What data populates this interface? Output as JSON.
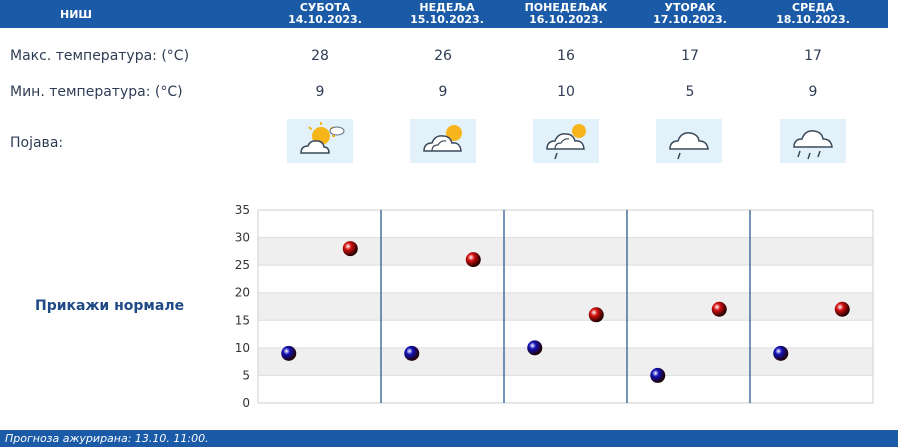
{
  "header": {
    "city": "НИШ",
    "days": [
      {
        "name": "СУБОТА",
        "date": "14.10.2023."
      },
      {
        "name": "НЕДЕЉА",
        "date": "15.10.2023."
      },
      {
        "name": "ПОНЕДЕЉАК",
        "date": "16.10.2023."
      },
      {
        "name": "УТОРАК",
        "date": "17.10.2023."
      },
      {
        "name": "СРЕДА",
        "date": "18.10.2023."
      }
    ]
  },
  "rows": {
    "max_label": "Макс. температура: (°C)",
    "min_label": "Мин. температура: (°C)",
    "phenomenon_label": "Појава:",
    "max_values": [
      "28",
      "26",
      "16",
      "17",
      "17"
    ],
    "min_values": [
      "9",
      "9",
      "10",
      "5",
      "9"
    ],
    "icons": [
      "partly-sunny-icon",
      "sun-behind-cloud-icon",
      "sun-cloud-light-rain-icon",
      "cloud-drizzle-icon",
      "cloud-rain-icon"
    ]
  },
  "normals_link": "Прикажи нормале",
  "chart_data": {
    "type": "scatter",
    "categories": [
      "СУБОТА",
      "НЕДЕЉА",
      "ПОНЕДЕЉАК",
      "УТОРАК",
      "СРЕДА"
    ],
    "series": [
      {
        "values": [
          28,
          26,
          16,
          17,
          17
        ],
        "color": "#d41010"
      },
      {
        "values": [
          9,
          9,
          10,
          5,
          9
        ],
        "color": "#1010b8"
      }
    ],
    "ylim": [
      0,
      35
    ],
    "yticks": [
      "0",
      "5",
      "10",
      "15",
      "20",
      "25",
      "30",
      "35"
    ],
    "grid": true
  },
  "footer": {
    "text": "Прогноза ажурирана:  13.10. 11:00."
  }
}
